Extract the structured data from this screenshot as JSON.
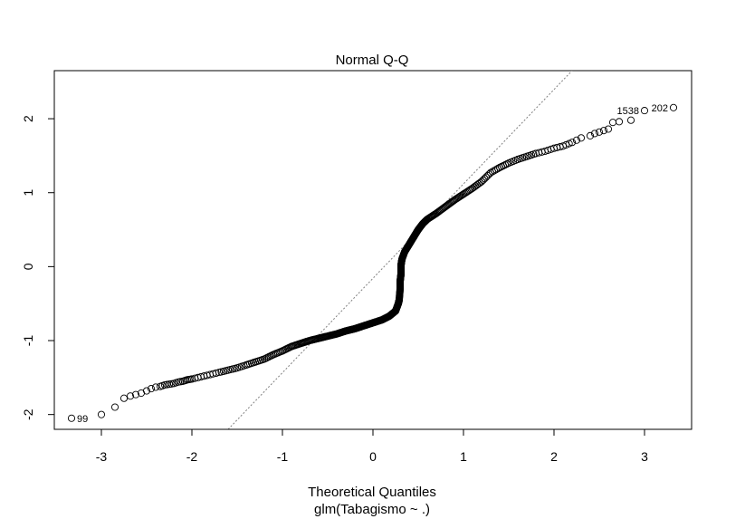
{
  "chart_data": {
    "type": "scatter",
    "title": "Normal Q-Q",
    "xlabel": "Theoretical Quantiles",
    "subtitle": "glm(Tabagismo ~ .)",
    "ylabel": "",
    "xlim": [
      -3.52,
      3.52
    ],
    "ylim": [
      -2.2,
      2.65
    ],
    "xticks": [
      -3,
      -2,
      -1,
      0,
      1,
      2,
      3
    ],
    "yticks": [
      -2,
      -1,
      0,
      1,
      2
    ],
    "reference_line": {
      "style": "dotted",
      "color": "#808080",
      "points": [
        [
          -1.6,
          -2.2
        ],
        [
          2.2,
          2.65
        ]
      ]
    },
    "labeled_points": [
      {
        "label": "99",
        "x": -3.33,
        "y": -2.05
      },
      {
        "label": "1538",
        "x": 3.0,
        "y": 2.11
      },
      {
        "label": "202",
        "x": 3.32,
        "y": 2.15
      }
    ],
    "points": [
      [
        -3.33,
        -2.05
      ],
      [
        -3.0,
        -2.0
      ],
      [
        -2.85,
        -1.9
      ],
      [
        -2.75,
        -1.78
      ],
      [
        -2.68,
        -1.75
      ],
      [
        -2.62,
        -1.73
      ],
      [
        -2.56,
        -1.71
      ],
      [
        -2.5,
        -1.68
      ],
      [
        -2.45,
        -1.65
      ],
      [
        -2.4,
        -1.63
      ],
      [
        -2.35,
        -1.62
      ],
      [
        -2.3,
        -1.6
      ],
      [
        -2.25,
        -1.59
      ],
      [
        -2.2,
        -1.58
      ],
      [
        -2.15,
        -1.56
      ],
      [
        -2.1,
        -1.55
      ],
      [
        -2.05,
        -1.53
      ],
      [
        -2.0,
        -1.52
      ],
      [
        -1.9,
        -1.49
      ],
      [
        -1.8,
        -1.46
      ],
      [
        -1.7,
        -1.43
      ],
      [
        -1.6,
        -1.4
      ],
      [
        -1.5,
        -1.37
      ],
      [
        -1.4,
        -1.33
      ],
      [
        -1.3,
        -1.29
      ],
      [
        -1.2,
        -1.25
      ],
      [
        -1.1,
        -1.19
      ],
      [
        -1.0,
        -1.14
      ],
      [
        -0.9,
        -1.08
      ],
      [
        -0.8,
        -1.04
      ],
      [
        -0.7,
        -1.0
      ],
      [
        -0.6,
        -0.97
      ],
      [
        -0.5,
        -0.94
      ],
      [
        -0.4,
        -0.91
      ],
      [
        -0.3,
        -0.87
      ],
      [
        -0.2,
        -0.84
      ],
      [
        -0.1,
        -0.8
      ],
      [
        0.0,
        -0.76
      ],
      [
        0.1,
        -0.72
      ],
      [
        0.18,
        -0.67
      ],
      [
        0.25,
        -0.6
      ],
      [
        0.28,
        -0.5
      ],
      [
        0.29,
        -0.45
      ],
      [
        0.3,
        -0.3
      ],
      [
        0.3,
        -0.2
      ],
      [
        0.31,
        -0.1
      ],
      [
        0.31,
        0.02
      ],
      [
        0.32,
        0.1
      ],
      [
        0.35,
        0.2
      ],
      [
        0.4,
        0.3
      ],
      [
        0.45,
        0.4
      ],
      [
        0.5,
        0.5
      ],
      [
        0.55,
        0.58
      ],
      [
        0.6,
        0.64
      ],
      [
        0.7,
        0.72
      ],
      [
        0.8,
        0.81
      ],
      [
        0.9,
        0.9
      ],
      [
        1.0,
        0.98
      ],
      [
        1.1,
        1.06
      ],
      [
        1.2,
        1.15
      ],
      [
        1.3,
        1.27
      ],
      [
        1.4,
        1.34
      ],
      [
        1.5,
        1.4
      ],
      [
        1.6,
        1.45
      ],
      [
        1.7,
        1.49
      ],
      [
        1.8,
        1.53
      ],
      [
        1.9,
        1.56
      ],
      [
        2.0,
        1.6
      ],
      [
        2.1,
        1.63
      ],
      [
        2.2,
        1.68
      ],
      [
        2.3,
        1.74
      ],
      [
        2.4,
        1.77
      ],
      [
        2.45,
        1.8
      ],
      [
        2.5,
        1.82
      ],
      [
        2.55,
        1.84
      ],
      [
        2.6,
        1.86
      ],
      [
        2.65,
        1.95
      ],
      [
        2.72,
        1.96
      ],
      [
        2.85,
        1.98
      ],
      [
        3.0,
        2.11
      ],
      [
        3.32,
        2.15
      ]
    ]
  }
}
